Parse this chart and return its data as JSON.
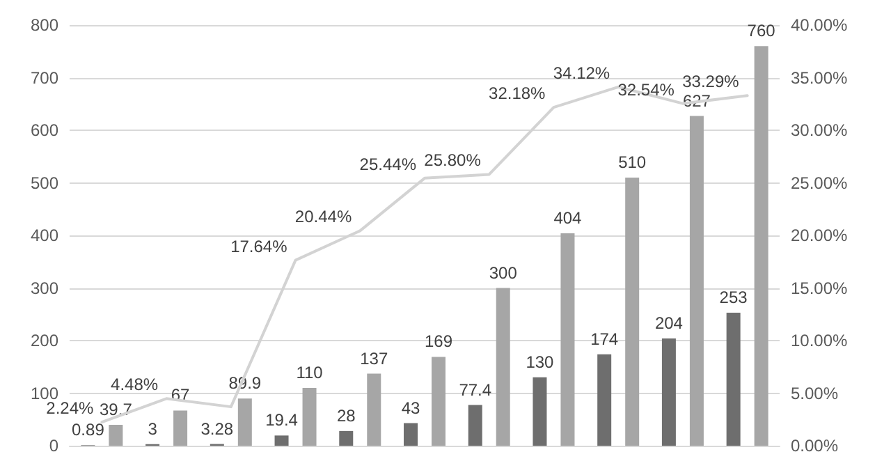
{
  "chart_data": {
    "type": "bar",
    "categories": [
      null,
      null,
      null,
      null,
      null,
      null,
      null,
      null,
      null,
      null,
      null
    ],
    "series": [
      {
        "color": "#6e6e6e",
        "values": [
          0.89,
          3,
          3.28,
          19.4,
          28,
          43,
          77.4,
          130,
          174,
          204,
          253
        ]
      },
      {
        "color": "#a6a6a6",
        "values": [
          39.7,
          67,
          89.9,
          110,
          137,
          169,
          300,
          404,
          510,
          627,
          760
        ]
      },
      {
        "type": "line",
        "axis": "y2",
        "color": "#d3d3d3",
        "values": [
          2.24,
          4.48,
          3.7,
          17.64,
          20.44,
          25.44,
          25.8,
          32.18,
          34.12,
          32.54,
          33.29
        ],
        "value_labels": [
          "2.24%",
          "4.48%",
          null,
          "17.64%",
          "20.44%",
          "25.44%",
          "25.80%",
          "32.18%",
          "34.12%",
          "32.54%",
          "33.29%"
        ]
      }
    ],
    "data_labels": true,
    "marker": "none",
    "line_style": "solid",
    "ylim": [
      0,
      800
    ],
    "yticks": [
      0,
      100,
      200,
      300,
      400,
      500,
      600,
      700,
      800
    ],
    "y2lim": [
      0,
      40
    ],
    "y2ticks": [
      {
        "value": 0,
        "label": "0.00%"
      },
      {
        "value": 5,
        "label": "5.00%"
      },
      {
        "value": 10,
        "label": "10.00%"
      },
      {
        "value": 15,
        "label": "15.00%"
      },
      {
        "value": 20,
        "label": "20.00%"
      },
      {
        "value": 25,
        "label": "25.00%"
      },
      {
        "value": 30,
        "label": "30.00%"
      },
      {
        "value": 35,
        "label": "35.00%"
      },
      {
        "value": 40,
        "label": "40.00%"
      }
    ],
    "grid": "y"
  }
}
